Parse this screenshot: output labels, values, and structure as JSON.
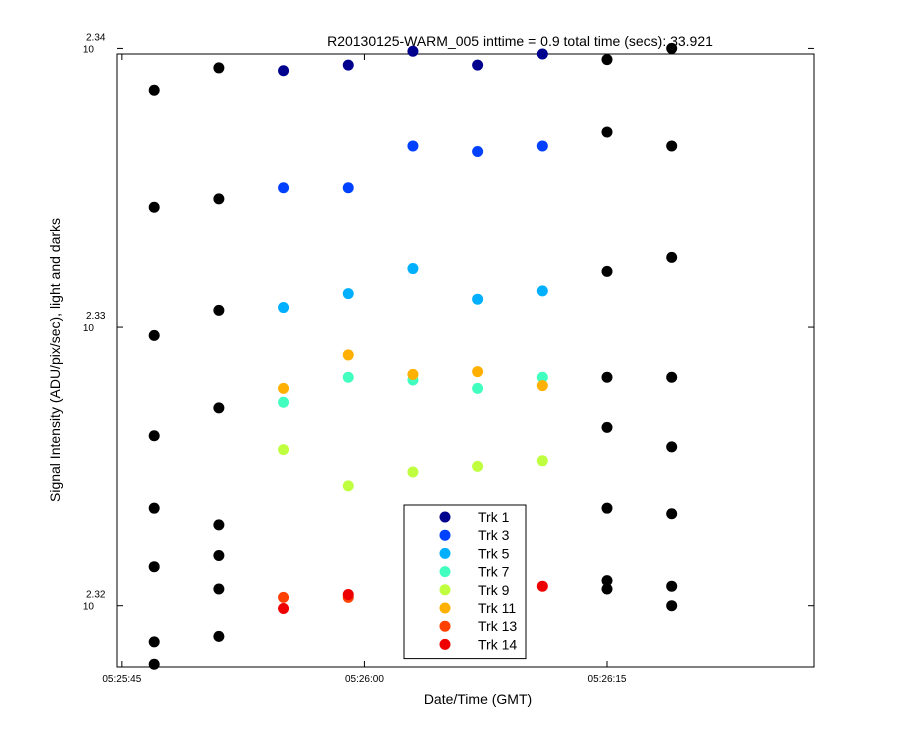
{
  "chart_data": {
    "type": "scatter",
    "title": "R20130125-WARM_005 inttime = 0.9 total time (secs): 33.921",
    "xlabel": "Date/Time (GMT)",
    "ylabel": "Signal Intensity (ADU/pix/sec), light and darks",
    "x_scale": "time",
    "y_scale": "log10",
    "xlim": [
      "05:25:44.7",
      "05:26:27.8"
    ],
    "ylim_log10": [
      2.3178,
      2.3398
    ],
    "x_ticks": [
      "05:25:45",
      "05:26:00",
      "05:26:15"
    ],
    "y_ticks": [
      {
        "base": "10",
        "exponent": "2.32",
        "log10": 2.32
      },
      {
        "base": "10",
        "exponent": "2.33",
        "log10": 2.33
      },
      {
        "base": "10",
        "exponent": "2.34",
        "log10": 2.34
      }
    ],
    "grid": false,
    "legend_position": "bottom-center",
    "x_times": [
      "05:25:47",
      "05:25:51",
      "05:25:55",
      "05:25:59",
      "05:26:03",
      "05:26:07",
      "05:26:11",
      "05:26:15",
      "05:26:19"
    ],
    "series": [
      {
        "name": "Trk 1",
        "color": "#00008f",
        "points": [
          [
            "05:25:55",
            2.3392
          ],
          [
            "05:25:59",
            2.3394
          ],
          [
            "05:26:03",
            2.3399
          ],
          [
            "05:26:07",
            2.3394
          ],
          [
            "05:26:11",
            2.3398
          ]
        ]
      },
      {
        "name": "Trk 3",
        "color": "#0040ff",
        "points": [
          [
            "05:25:55",
            2.335
          ],
          [
            "05:25:59",
            2.335
          ],
          [
            "05:26:03",
            2.3365
          ],
          [
            "05:26:07",
            2.3363
          ],
          [
            "05:26:11",
            2.3365
          ]
        ]
      },
      {
        "name": "Trk 5",
        "color": "#00b0ff",
        "points": [
          [
            "05:25:55",
            2.3307
          ],
          [
            "05:25:59",
            2.3312
          ],
          [
            "05:26:03",
            2.3321
          ],
          [
            "05:26:07",
            2.331
          ],
          [
            "05:26:11",
            2.3313
          ]
        ]
      },
      {
        "name": "Trk 7",
        "color": "#40ffbf",
        "points": [
          [
            "05:25:55",
            2.3273
          ],
          [
            "05:25:59",
            2.3282
          ],
          [
            "05:26:03",
            2.3281
          ],
          [
            "05:26:07",
            2.3278
          ],
          [
            "05:26:11",
            2.3282
          ]
        ]
      },
      {
        "name": "Trk 9",
        "color": "#bfff40",
        "points": [
          [
            "05:25:55",
            2.3256
          ],
          [
            "05:25:59",
            2.3243
          ],
          [
            "05:26:03",
            2.3248
          ],
          [
            "05:26:07",
            2.325
          ],
          [
            "05:26:11",
            2.3252
          ]
        ]
      },
      {
        "name": "Trk 11",
        "color": "#ffb000",
        "points": [
          [
            "05:25:55",
            2.3278
          ],
          [
            "05:25:59",
            2.329
          ],
          [
            "05:26:03",
            2.3283
          ],
          [
            "05:26:07",
            2.3284
          ],
          [
            "05:26:11",
            2.3279
          ]
        ]
      },
      {
        "name": "Trk 13",
        "color": "#ff4000",
        "points": [
          [
            "05:25:55",
            2.3203
          ],
          [
            "05:25:59",
            2.3203
          ]
        ]
      },
      {
        "name": "Trk 14",
        "color": "#ef0000",
        "points": [
          [
            "05:25:55",
            2.3199
          ],
          [
            "05:25:59",
            2.3204
          ],
          [
            "05:26:11",
            2.3207
          ]
        ]
      }
    ],
    "darks": {
      "color": "#000000",
      "points": [
        [
          "05:25:47",
          2.3385
        ],
        [
          "05:25:47",
          2.3343
        ],
        [
          "05:25:47",
          2.3297
        ],
        [
          "05:25:47",
          2.3261
        ],
        [
          "05:25:47",
          2.3235
        ],
        [
          "05:25:47",
          2.3214
        ],
        [
          "05:25:47",
          2.3187
        ],
        [
          "05:25:47",
          2.3179
        ],
        [
          "05:25:51",
          2.3393
        ],
        [
          "05:25:51",
          2.3346
        ],
        [
          "05:25:51",
          2.3306
        ],
        [
          "05:25:51",
          2.3271
        ],
        [
          "05:25:51",
          2.3229
        ],
        [
          "05:25:51",
          2.3218
        ],
        [
          "05:25:51",
          2.3206
        ],
        [
          "05:25:51",
          2.3189
        ],
        [
          "05:26:15",
          2.3396
        ],
        [
          "05:26:15",
          2.337
        ],
        [
          "05:26:15",
          2.332
        ],
        [
          "05:26:15",
          2.3282
        ],
        [
          "05:26:15",
          2.3264
        ],
        [
          "05:26:15",
          2.3235
        ],
        [
          "05:26:15",
          2.3209
        ],
        [
          "05:26:15",
          2.3206
        ],
        [
          "05:26:19",
          2.34
        ],
        [
          "05:26:19",
          2.3365
        ],
        [
          "05:26:19",
          2.3325
        ],
        [
          "05:26:19",
          2.3282
        ],
        [
          "05:26:19",
          2.3257
        ],
        [
          "05:26:19",
          2.3233
        ],
        [
          "05:26:19",
          2.3207
        ],
        [
          "05:26:19",
          2.32
        ]
      ]
    }
  }
}
